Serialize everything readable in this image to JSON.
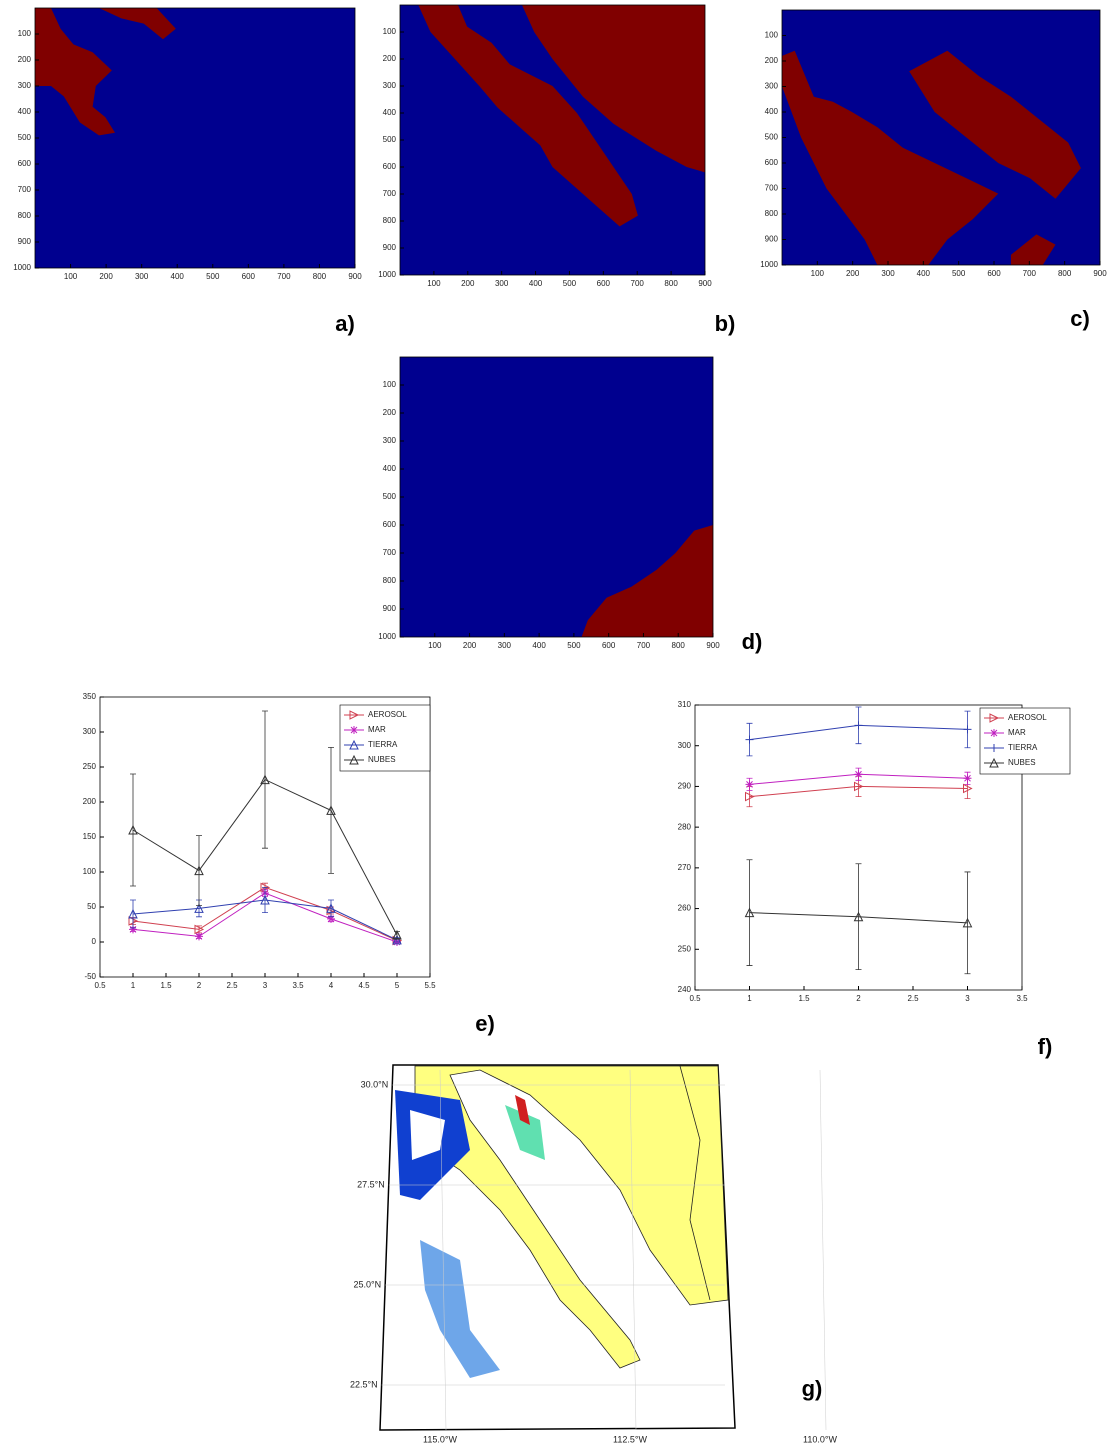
{
  "chart_data": [
    {
      "type": "image",
      "label": "a)",
      "xlim": [
        0,
        900
      ],
      "ylim": [
        1000,
        0
      ],
      "xticks": [
        100,
        200,
        300,
        400,
        500,
        600,
        700,
        800,
        900
      ],
      "yticks": [
        100,
        200,
        300,
        400,
        500,
        600,
        700,
        800,
        900,
        1000
      ]
    },
    {
      "type": "image",
      "label": "b)",
      "xlim": [
        0,
        900
      ],
      "ylim": [
        1000,
        0
      ],
      "xticks": [
        100,
        200,
        300,
        400,
        500,
        600,
        700,
        800,
        900
      ],
      "yticks": [
        100,
        200,
        300,
        400,
        500,
        600,
        700,
        800,
        900,
        1000
      ]
    },
    {
      "type": "image",
      "label": "c)",
      "xlim": [
        0,
        900
      ],
      "ylim": [
        1000,
        0
      ],
      "xticks": [
        100,
        200,
        300,
        400,
        500,
        600,
        700,
        800,
        900
      ],
      "yticks": [
        100,
        200,
        300,
        400,
        500,
        600,
        700,
        800,
        900,
        1000
      ]
    },
    {
      "type": "image",
      "label": "d)",
      "xlim": [
        0,
        900
      ],
      "ylim": [
        1000,
        0
      ],
      "xticks": [
        100,
        200,
        300,
        400,
        500,
        600,
        700,
        800,
        900
      ],
      "yticks": [
        100,
        200,
        300,
        400,
        500,
        600,
        700,
        800,
        900,
        1000
      ]
    },
    {
      "type": "line",
      "label": "e)",
      "x": [
        1,
        2,
        3,
        4,
        5
      ],
      "xlim": [
        0.5,
        5.5
      ],
      "xticks": [
        0.5,
        1,
        1.5,
        2,
        2.5,
        3,
        3.5,
        4,
        4.5,
        5,
        5.5
      ],
      "ylim": [
        -50,
        350
      ],
      "yticks": [
        -50,
        0,
        50,
        100,
        150,
        200,
        250,
        300,
        350
      ],
      "series": [
        {
          "name": "AEROSOL",
          "color": "#d04050",
          "marker": "triangle-right",
          "values": [
            30,
            18,
            78,
            45,
            2
          ],
          "errors": [
            5,
            5,
            6,
            5,
            2
          ]
        },
        {
          "name": "MAR",
          "color": "#c020c0",
          "marker": "star",
          "values": [
            18,
            8,
            70,
            33,
            0
          ],
          "errors": [
            3,
            3,
            5,
            4,
            1
          ]
        },
        {
          "name": "TIERRA",
          "color": "#3040b0",
          "marker": "triangle",
          "values": [
            40,
            48,
            60,
            48,
            3
          ],
          "errors": [
            20,
            12,
            18,
            12,
            3
          ]
        },
        {
          "name": "NUBES",
          "color": "#333333",
          "marker": "triangle",
          "values": [
            160,
            102,
            232,
            188,
            10
          ],
          "errors": [
            80,
            50,
            98,
            90,
            5
          ]
        }
      ]
    },
    {
      "type": "line",
      "label": "f)",
      "x": [
        1,
        2,
        3
      ],
      "xlim": [
        0.5,
        3.5
      ],
      "xticks": [
        0.5,
        1,
        1.5,
        2,
        2.5,
        3,
        3.5
      ],
      "ylim": [
        240,
        310
      ],
      "yticks": [
        240,
        250,
        260,
        270,
        280,
        290,
        300,
        310
      ],
      "series": [
        {
          "name": "AEROSOL",
          "color": "#d04050",
          "marker": "triangle-right",
          "values": [
            287.5,
            290,
            289.5
          ],
          "errors": [
            2.5,
            2.5,
            2.5
          ]
        },
        {
          "name": "MAR",
          "color": "#c020c0",
          "marker": "star",
          "values": [
            290.5,
            293,
            292
          ],
          "errors": [
            1.5,
            1.5,
            1.5
          ]
        },
        {
          "name": "TIERRA",
          "color": "#3040b0",
          "marker": "plus",
          "values": [
            301.5,
            305,
            304
          ],
          "errors": [
            4,
            4.5,
            4.5
          ]
        },
        {
          "name": "NUBES",
          "color": "#333333",
          "marker": "triangle",
          "values": [
            259,
            258,
            256.5
          ],
          "errors": [
            13,
            13,
            12.5
          ]
        }
      ]
    },
    {
      "type": "map",
      "label": "g)",
      "lat_ticks": [
        {
          "value": 30,
          "label": "30.0°N"
        },
        {
          "value": 27.5,
          "label": "27.5°N"
        },
        {
          "value": 25,
          "label": "25.0°N"
        },
        {
          "value": 22.5,
          "label": "22.5°N"
        }
      ],
      "lon_ticks": [
        {
          "value": 115,
          "label": "115.0°W"
        },
        {
          "value": 112.5,
          "label": "112.5°W"
        },
        {
          "value": 110,
          "label": "110.0°W"
        }
      ]
    }
  ]
}
